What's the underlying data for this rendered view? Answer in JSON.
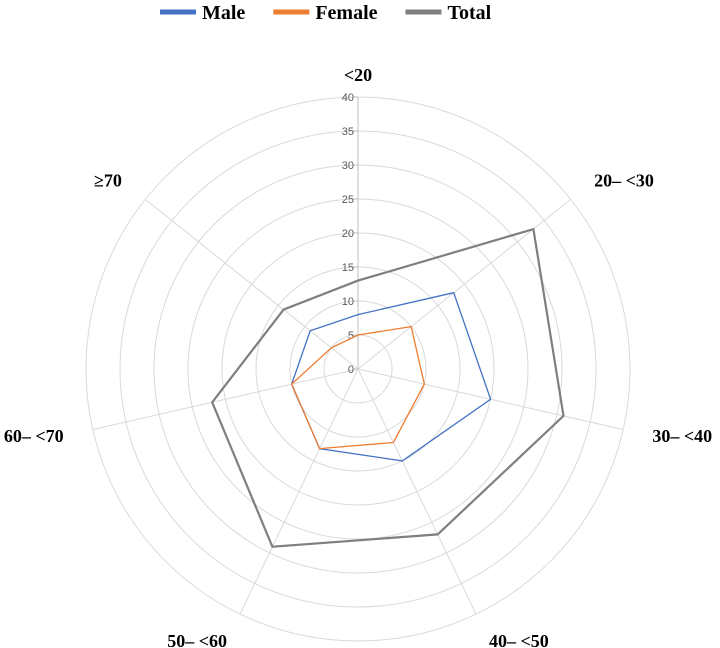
{
  "chart_data": {
    "type": "radar",
    "categories": [
      "<20",
      "20– <30",
      "30– <40",
      "40– <50",
      "50– <60",
      "60– <70",
      "≥70"
    ],
    "series": [
      {
        "name": "Male",
        "color": "#4472C4",
        "values": [
          8,
          18,
          20,
          15,
          13,
          10,
          9
        ]
      },
      {
        "name": "Female",
        "color": "#ED7D31",
        "values": [
          5,
          10,
          10,
          12,
          13,
          10,
          5
        ]
      },
      {
        "name": "Total",
        "color": "#7F7F7F",
        "values": [
          13,
          33,
          31,
          27,
          29,
          22,
          14
        ]
      }
    ],
    "r_ticks": [
      0,
      5,
      10,
      15,
      20,
      25,
      30,
      35,
      40
    ],
    "rlim": [
      0,
      40
    ],
    "grid": true,
    "legend": "top"
  }
}
